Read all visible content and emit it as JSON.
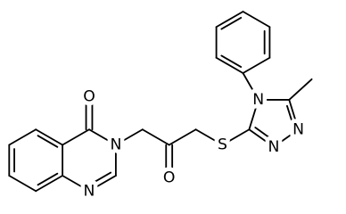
{
  "atoms": [
    {
      "label": "O"
    },
    {
      "label": "N"
    },
    {
      "label": "N"
    },
    {
      "label": "O"
    },
    {
      "label": "S"
    },
    {
      "label": "N"
    },
    {
      "label": "N"
    },
    {
      "label": "N"
    }
  ]
}
